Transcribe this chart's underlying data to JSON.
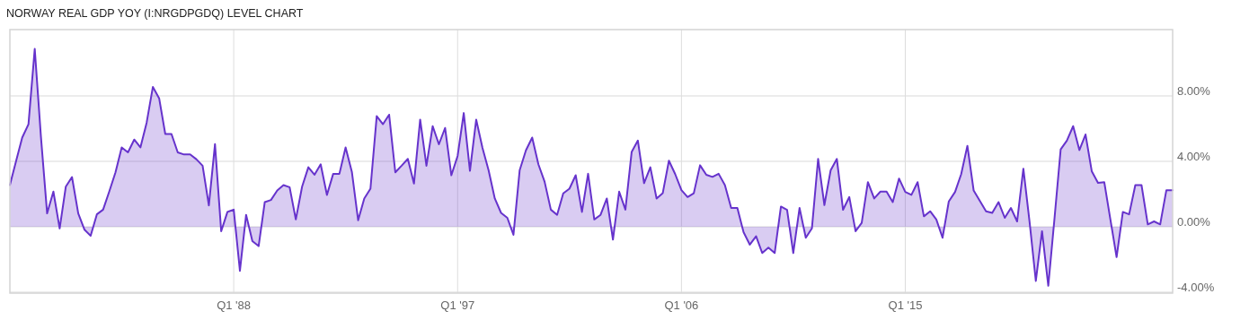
{
  "chart_data": {
    "type": "area",
    "title": "NORWAY REAL GDP YOY (I:NRGDPGDQ) LEVEL CHART",
    "x": [
      "1979-01",
      "1979-04",
      "1979-07",
      "1979-10",
      "1980-01",
      "1980-04",
      "1980-07",
      "1980-10",
      "1981-01",
      "1981-04",
      "1981-07",
      "1981-10",
      "1982-01",
      "1982-04",
      "1982-07",
      "1982-10",
      "1983-01",
      "1983-04",
      "1983-07",
      "1983-10",
      "1984-01",
      "1984-04",
      "1984-07",
      "1984-10",
      "1985-01",
      "1985-04",
      "1985-07",
      "1985-10",
      "1986-01",
      "1986-04",
      "1986-07",
      "1986-10",
      "1987-01",
      "1987-04",
      "1987-07",
      "1987-10",
      "1988-01",
      "1988-04",
      "1988-07",
      "1988-10",
      "1989-01",
      "1989-04",
      "1989-07",
      "1989-10",
      "1990-01",
      "1990-04",
      "1990-07",
      "1990-10",
      "1991-01",
      "1991-04",
      "1991-07",
      "1991-10",
      "1992-01",
      "1992-04",
      "1992-07",
      "1992-10",
      "1993-01",
      "1993-04",
      "1993-07",
      "1993-10",
      "1994-01",
      "1994-04",
      "1994-07",
      "1994-10",
      "1995-01",
      "1995-04",
      "1995-07",
      "1995-10",
      "1996-01",
      "1996-04",
      "1996-07",
      "1996-10",
      "1997-01",
      "1997-04",
      "1997-07",
      "1997-10",
      "1998-01",
      "1998-04",
      "1998-07",
      "1998-10",
      "1999-01",
      "1999-04",
      "1999-07",
      "1999-10",
      "2000-01",
      "2000-04",
      "2000-07",
      "2000-10",
      "2001-01",
      "2001-04",
      "2001-07",
      "2001-10",
      "2002-01",
      "2002-04",
      "2002-07",
      "2002-10",
      "2003-01",
      "2003-04",
      "2003-07",
      "2003-10",
      "2004-01",
      "2004-04",
      "2004-07",
      "2004-10",
      "2005-01",
      "2005-04",
      "2005-07",
      "2005-10",
      "2006-01",
      "2006-04",
      "2006-07",
      "2006-10",
      "2007-01",
      "2007-04",
      "2007-07",
      "2007-10",
      "2008-01",
      "2008-04",
      "2008-07",
      "2008-10",
      "2009-01",
      "2009-04",
      "2009-07",
      "2009-10",
      "2010-01",
      "2010-04",
      "2010-07",
      "2010-10",
      "2011-01",
      "2011-04",
      "2011-07",
      "2011-10",
      "2012-01",
      "2012-04",
      "2012-07",
      "2012-10",
      "2013-01",
      "2013-04",
      "2013-07",
      "2013-10",
      "2014-01",
      "2014-04",
      "2014-07",
      "2014-10",
      "2015-01",
      "2015-04",
      "2015-07",
      "2015-10",
      "2016-01",
      "2016-04",
      "2016-07",
      "2016-10",
      "2017-01",
      "2017-04",
      "2017-07",
      "2017-10",
      "2018-01",
      "2018-04",
      "2018-07",
      "2018-10",
      "2019-01",
      "2019-04",
      "2019-07",
      "2019-10",
      "2020-01",
      "2020-04",
      "2020-07",
      "2020-10",
      "2021-01",
      "2021-04",
      "2021-07",
      "2021-10",
      "2022-01",
      "2022-04",
      "2022-07",
      "2022-10",
      "2023-01",
      "2023-04",
      "2023-07",
      "2023-10",
      "2024-01",
      "2024-04",
      "2024-07",
      "2024-10",
      "2025-01",
      "2025-04",
      "2025-07",
      "2025-10"
    ],
    "series": [
      {
        "color": "#6633cc",
        "values": [
          2.55,
          4.0,
          5.45,
          6.27,
          10.87,
          5.5,
          0.82,
          2.15,
          -0.1,
          2.45,
          3.04,
          0.82,
          -0.18,
          -0.55,
          0.76,
          1.05,
          2.18,
          3.33,
          4.85,
          4.55,
          5.33,
          4.85,
          6.36,
          8.55,
          7.85,
          5.67,
          5.67,
          4.55,
          4.42,
          4.42,
          4.13,
          3.73,
          1.31,
          5.05,
          -0.27,
          0.91,
          1.05,
          -2.69,
          0.73,
          -0.87,
          -1.18,
          1.51,
          1.64,
          2.22,
          2.55,
          2.42,
          0.45,
          2.45,
          3.64,
          3.18,
          3.82,
          1.95,
          3.24,
          3.24,
          4.85,
          3.36,
          0.4,
          1.73,
          2.33,
          6.76,
          6.27,
          6.85,
          3.33,
          3.73,
          4.15,
          2.64,
          6.55,
          3.73,
          6.15,
          5.04,
          6.04,
          3.15,
          4.33,
          6.95,
          3.42,
          6.55,
          4.82,
          3.45,
          1.73,
          0.85,
          0.55,
          -0.49,
          3.45,
          4.67,
          5.45,
          3.82,
          2.76,
          1.05,
          0.73,
          2.04,
          2.33,
          3.15,
          0.91,
          3.24,
          0.45,
          0.73,
          1.73,
          -0.78,
          2.15,
          1.05,
          4.58,
          5.27,
          2.67,
          3.64,
          1.73,
          2.05,
          4.04,
          3.22,
          2.24,
          1.82,
          2.05,
          3.76,
          3.18,
          3.05,
          3.24,
          2.55,
          1.15,
          1.15,
          -0.33,
          -1.09,
          -0.58,
          -1.6,
          -1.27,
          -1.6,
          1.24,
          1.04,
          -1.6,
          1.15,
          -0.67,
          -0.09,
          4.15,
          1.33,
          3.45,
          4.15,
          1.04,
          1.82,
          -0.27,
          0.24,
          2.73,
          1.73,
          2.15,
          2.15,
          1.51,
          2.95,
          2.13,
          1.95,
          2.73,
          0.64,
          0.95,
          0.45,
          -0.67,
          1.55,
          2.13,
          3.22,
          4.95,
          2.22,
          1.58,
          0.95,
          0.85,
          1.51,
          0.55,
          1.15,
          0.33,
          3.55,
          0.27,
          -3.31,
          -0.27,
          -3.6,
          0.55,
          4.73,
          5.27,
          6.15,
          4.69,
          5.64,
          3.4,
          2.69,
          2.73,
          0.45,
          -1.85,
          0.91,
          0.76,
          2.55,
          2.55,
          0.15,
          0.33,
          0.15,
          2.24,
          2.24
        ]
      }
    ],
    "xlim": [
      "1979-01",
      "2025-10"
    ],
    "xticks": [
      {
        "value": "1988-01",
        "label": "Q1 '88"
      },
      {
        "value": "1997-01",
        "label": "Q1 '97"
      },
      {
        "value": "2006-01",
        "label": "Q1 '06"
      },
      {
        "value": "2015-01",
        "label": "Q1 '15"
      }
    ],
    "ylim": [
      -4.05,
      12.05
    ],
    "yticks": [
      {
        "value": -4,
        "label": "-4.00%"
      },
      {
        "value": 0,
        "label": "0.00%"
      },
      {
        "value": 4,
        "label": "4.00%"
      },
      {
        "value": 8,
        "label": "8.00%"
      }
    ],
    "grid": true
  }
}
